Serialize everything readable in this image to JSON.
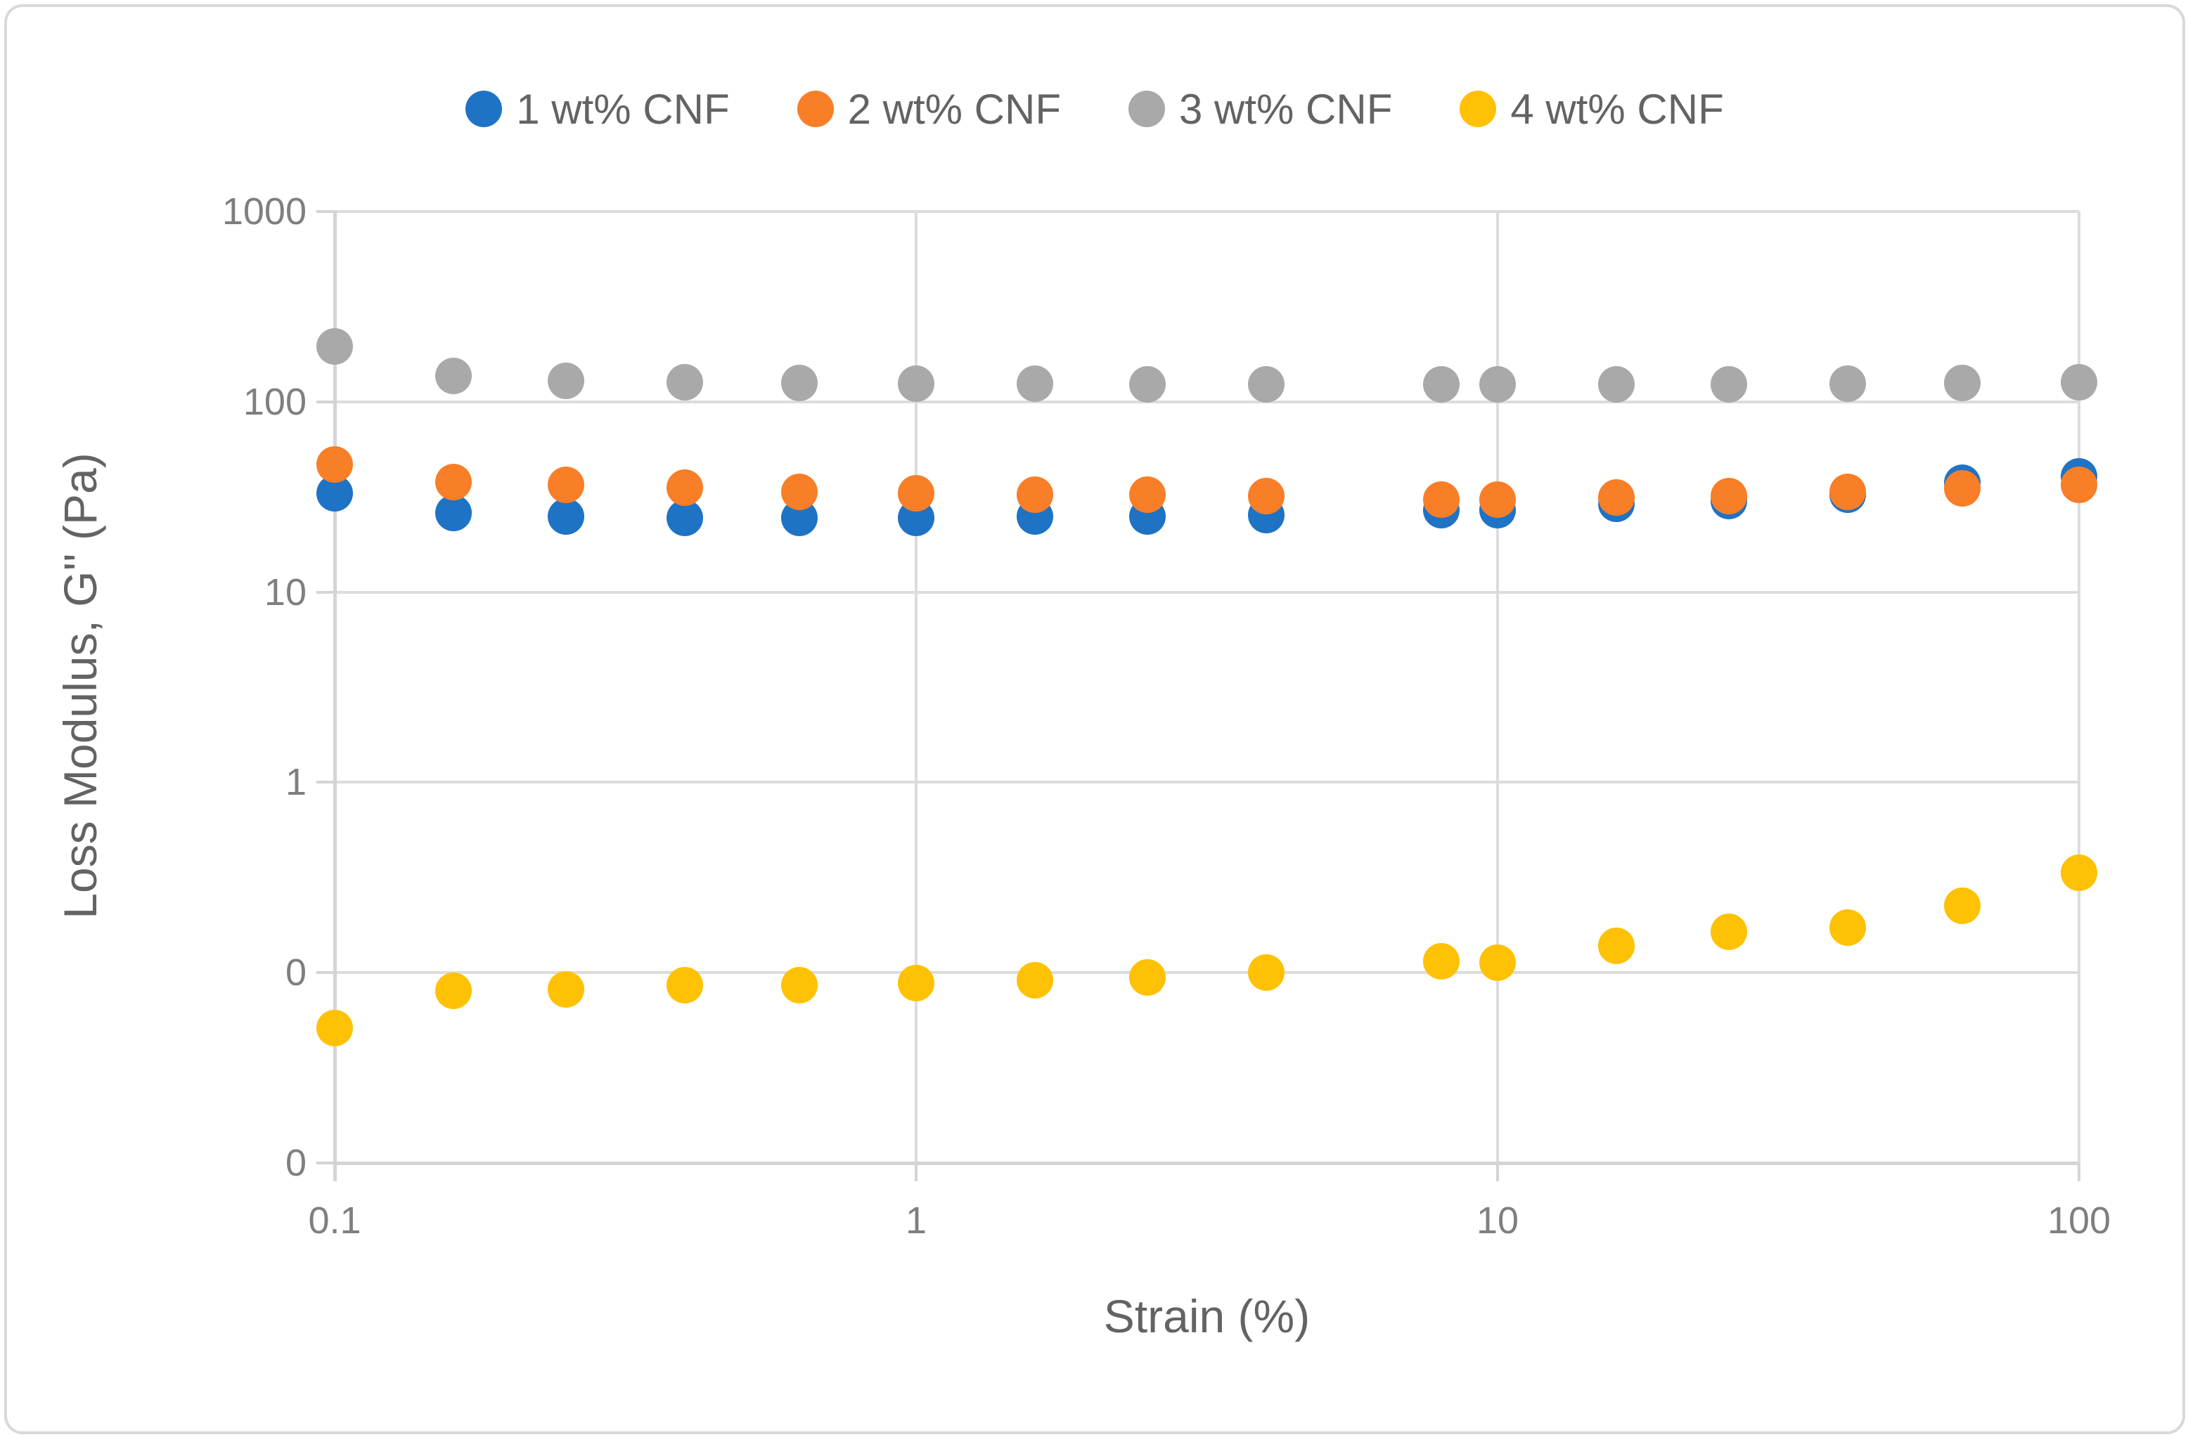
{
  "legend": {
    "items": [
      {
        "label": "1 wt% CNF",
        "color": "#1E73C4"
      },
      {
        "label": "2 wt% CNF",
        "color": "#F87E28"
      },
      {
        "label": "3 wt% CNF",
        "color": "#A9A9A9"
      },
      {
        "label": "4 wt% CNF",
        "color": "#FFC104"
      }
    ]
  },
  "axes": {
    "x": {
      "title": "Strain (%)",
      "scale": "log",
      "min": 0.1,
      "max": 100,
      "ticks": [
        {
          "value": 0.1,
          "label": "0.1"
        },
        {
          "value": 1,
          "label": "1"
        },
        {
          "value": 10,
          "label": "10"
        },
        {
          "value": 100,
          "label": "100"
        }
      ]
    },
    "y": {
      "title": "Loss Modulus, G'' (Pa)",
      "scale": "log",
      "min": 0.01,
      "max": 1000,
      "ticks": [
        {
          "value": 1000,
          "label": "1000"
        },
        {
          "value": 100,
          "label": "100"
        },
        {
          "value": 10,
          "label": "10"
        },
        {
          "value": 1,
          "label": "1"
        },
        {
          "value": 0.1,
          "label": "0"
        },
        {
          "value": 0.01,
          "label": "0"
        }
      ]
    }
  },
  "chart_data": {
    "type": "scatter",
    "xlabel": "Strain (%)",
    "ylabel": "Loss Modulus, G'' (Pa)",
    "xlim": [
      0.1,
      100
    ],
    "ylim": [
      0.01,
      1000
    ],
    "x_scale": "log",
    "y_scale": "log",
    "grid": true,
    "legend_position": "top",
    "x": [
      0.1,
      0.16,
      0.25,
      0.4,
      0.63,
      1,
      1.6,
      2.5,
      4,
      8,
      10,
      16,
      25,
      40,
      63,
      100
    ],
    "series": [
      {
        "name": "1 wt% CNF",
        "color": "#1E73C4",
        "values": [
          33,
          26,
          25,
          24.5,
          24.5,
          24.5,
          25,
          25,
          25.5,
          27,
          27,
          29,
          30,
          32.5,
          37.5,
          40.5
        ]
      },
      {
        "name": "2 wt% CNF",
        "color": "#F87E28",
        "values": [
          47,
          38,
          36.5,
          35.5,
          33.5,
          33,
          32.5,
          32.5,
          32,
          30.5,
          30.5,
          31.5,
          32,
          33.5,
          35,
          36.5
        ]
      },
      {
        "name": "3 wt% CNF",
        "color": "#A9A9A9",
        "values": [
          195,
          137,
          129,
          127,
          126,
          125,
          124.5,
          124,
          123.5,
          123,
          123,
          123.5,
          124,
          125,
          126,
          127
        ]
      },
      {
        "name": "4 wt% CNF",
        "color": "#FFC104",
        "values": [
          0.051,
          0.08,
          0.082,
          0.086,
          0.086,
          0.088,
          0.091,
          0.094,
          0.1,
          0.115,
          0.113,
          0.138,
          0.164,
          0.172,
          0.225,
          0.335
        ]
      }
    ]
  }
}
